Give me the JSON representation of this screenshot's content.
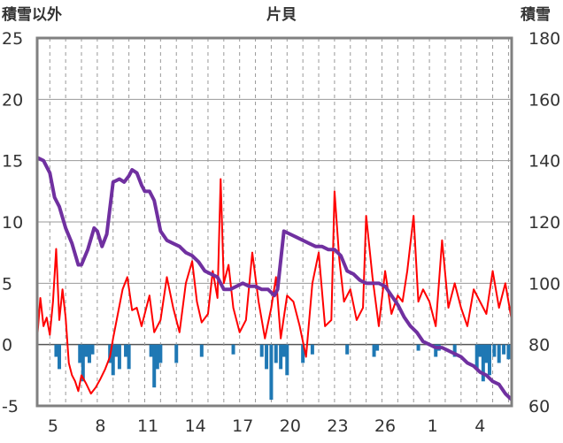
{
  "chart_data": {
    "type": "line",
    "title": "片貝",
    "left_axis_label": "積雪以外",
    "right_axis_label": "積雪",
    "left_ylim": [
      -5,
      25
    ],
    "left_ticks": [
      "25",
      "20",
      "15",
      "10",
      "5",
      "0",
      "-5"
    ],
    "right_ylim": [
      60,
      180
    ],
    "right_ticks": [
      "180",
      "160",
      "140",
      "120",
      "100",
      "80",
      "60"
    ],
    "x_ticks": [
      "5",
      "8",
      "11",
      "14",
      "17",
      "20",
      "23",
      "26",
      "1",
      "4"
    ],
    "x_tick_days": [
      4.2,
      7.2,
      10.2,
      13.2,
      16.2,
      19.2,
      22.2,
      25.2,
      28.2,
      31.2
    ],
    "x_range": [
      3.2,
      33.2
    ],
    "grid": true,
    "colors": {
      "temperature": "#ff0000",
      "precipitation": "#1f78b4",
      "snow_depth": "#7030a0",
      "grid": "#999999",
      "frame": "#808080"
    },
    "series": [
      {
        "key": "temperature",
        "axis": "left",
        "x": [
          3.2,
          3.4,
          3.6,
          3.8,
          4.0,
          4.2,
          4.4,
          4.6,
          4.8,
          5.0,
          5.2,
          5.4,
          5.6,
          5.8,
          6.0,
          6.3,
          6.6,
          6.9,
          7.2,
          7.5,
          7.8,
          8.0,
          8.3,
          8.6,
          8.9,
          9.2,
          9.5,
          9.8,
          10.0,
          10.3,
          10.6,
          11.0,
          11.4,
          11.8,
          12.2,
          12.6,
          13.0,
          13.3,
          13.6,
          14.0,
          14.3,
          14.6,
          14.8,
          15.0,
          15.3,
          15.6,
          16.0,
          16.4,
          16.8,
          17.2,
          17.6,
          18.0,
          18.3,
          18.6,
          19.0,
          19.4,
          19.8,
          20.2,
          20.6,
          21.0,
          21.4,
          21.8,
          22.0,
          22.3,
          22.6,
          23.0,
          23.4,
          23.8,
          24.0,
          24.4,
          24.8,
          25.2,
          25.6,
          26.0,
          26.3,
          26.6,
          27.0,
          27.3,
          27.6,
          28.0,
          28.4,
          28.8,
          29.2,
          29.6,
          30.0,
          30.4,
          30.8,
          31.2,
          31.6,
          32.0,
          32.4,
          32.8,
          33.2
        ],
        "values": [
          0.5,
          3.8,
          1.5,
          2.2,
          0.8,
          3.5,
          7.8,
          2.0,
          4.5,
          2.2,
          -1.5,
          -2.5,
          -3.0,
          -3.8,
          -2.5,
          -3.2,
          -4.0,
          -3.5,
          -2.8,
          -2.0,
          -1.0,
          0.5,
          2.5,
          4.5,
          5.5,
          2.8,
          3.0,
          1.5,
          2.5,
          4.0,
          1.0,
          2.0,
          5.5,
          3.0,
          1.0,
          5.0,
          6.8,
          3.5,
          1.8,
          2.5,
          6.0,
          3.8,
          13.5,
          5.0,
          6.5,
          3.0,
          1.0,
          2.0,
          7.5,
          3.5,
          0.5,
          3.0,
          5.5,
          0.5,
          4.0,
          3.5,
          1.5,
          -1.0,
          5.0,
          7.5,
          1.5,
          2.0,
          12.5,
          7.0,
          3.5,
          4.5,
          2.0,
          3.0,
          10.5,
          5.5,
          1.5,
          6.0,
          2.5,
          4.0,
          3.5,
          6.0,
          10.5,
          3.5,
          4.5,
          3.5,
          1.5,
          8.5,
          3.0,
          5.0,
          3.0,
          1.5,
          4.5,
          3.5,
          2.5,
          6.0,
          3.0,
          5.0,
          2.0
        ]
      },
      {
        "key": "precipitation",
        "axis": "left",
        "type": "bar",
        "x": [
          4.4,
          4.6,
          5.9,
          6.1,
          6.3,
          6.5,
          6.7,
          7.8,
          8.0,
          8.2,
          8.4,
          8.8,
          9.0,
          10.4,
          10.6,
          10.8,
          11.0,
          12.0,
          13.6,
          15.6,
          17.4,
          17.7,
          18.0,
          18.3,
          18.6,
          18.8,
          19.0,
          20.0,
          20.6,
          22.8,
          24.5,
          24.7,
          27.3,
          28.4,
          28.6,
          29.6,
          31.0,
          31.2,
          31.4,
          31.6,
          31.8,
          32.1,
          32.4,
          32.7,
          33.0
        ],
        "values": [
          -1.0,
          -2.0,
          -1.5,
          -3.0,
          -1.0,
          -1.5,
          -0.8,
          -1.5,
          -2.5,
          -1.0,
          -2.0,
          -1.0,
          -2.0,
          -1.0,
          -3.5,
          -2.0,
          -1.5,
          -1.5,
          -1.0,
          -0.8,
          -1.0,
          -2.0,
          -4.5,
          -1.5,
          -2.0,
          -1.0,
          -2.5,
          -1.5,
          -0.8,
          -0.8,
          -1.0,
          -0.5,
          -0.5,
          -1.0,
          -0.5,
          -1.0,
          -2.0,
          -1.0,
          -3.0,
          -1.5,
          -2.5,
          -1.0,
          -1.5,
          -0.8,
          -1.2
        ]
      },
      {
        "key": "snow_depth",
        "axis": "right",
        "x": [
          3.2,
          3.6,
          4.0,
          4.3,
          4.6,
          5.0,
          5.4,
          5.8,
          6.0,
          6.4,
          6.8,
          7.0,
          7.3,
          7.6,
          8.0,
          8.4,
          8.7,
          9.0,
          9.2,
          9.5,
          9.8,
          10.0,
          10.3,
          10.6,
          11.0,
          11.4,
          11.8,
          12.2,
          12.6,
          13.0,
          13.4,
          13.8,
          14.2,
          14.6,
          15.0,
          15.4,
          15.8,
          16.2,
          16.6,
          17.0,
          17.4,
          17.8,
          18.2,
          18.4,
          18.8,
          19.2,
          19.6,
          20.0,
          20.4,
          20.8,
          21.2,
          21.6,
          22.0,
          22.4,
          22.8,
          23.2,
          23.6,
          24.0,
          24.4,
          24.8,
          25.2,
          25.6,
          26.0,
          26.4,
          26.8,
          27.2,
          27.6,
          28.0,
          28.4,
          28.8,
          29.2,
          29.6,
          30.0,
          30.4,
          30.8,
          31.2,
          31.6,
          32.0,
          32.4,
          32.8,
          33.2
        ],
        "values": [
          141,
          140,
          136,
          128,
          125,
          118,
          113,
          106,
          106,
          111,
          118,
          117,
          112,
          116,
          133,
          134,
          133,
          135,
          137,
          136,
          132,
          130,
          130,
          127,
          117,
          114,
          113,
          112,
          110,
          109,
          107,
          104,
          103,
          102,
          98,
          98,
          99,
          100,
          99,
          99,
          98,
          98,
          96,
          98,
          117,
          116,
          115,
          114,
          113,
          112,
          112,
          111,
          111,
          109,
          104,
          103,
          101,
          100,
          100,
          100,
          99,
          96,
          93,
          89,
          86,
          84,
          81,
          80,
          79,
          79,
          78,
          77,
          76,
          74,
          73,
          71,
          70,
          68,
          67,
          64,
          62
        ]
      }
    ]
  }
}
